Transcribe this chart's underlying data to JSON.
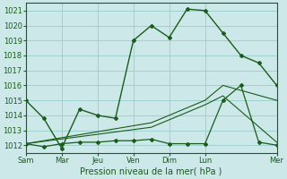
{
  "xlabel": "Pression niveau de la mer( hPa )",
  "bg_color": "#cce8e8",
  "grid_color": "#99cccc",
  "line_color": "#1a5c1a",
  "spine_color": "#1a5c1a",
  "xlim": [
    0,
    14
  ],
  "ylim": [
    1011.5,
    1021.5
  ],
  "yticks": [
    1012,
    1013,
    1014,
    1015,
    1016,
    1017,
    1018,
    1019,
    1020,
    1021
  ],
  "xtick_labels": [
    "Sam",
    "Mar",
    "Jeu",
    "Ven",
    "Dim",
    "Lun",
    "Mer"
  ],
  "xtick_pos": [
    0,
    2,
    4,
    6,
    8,
    10,
    14
  ],
  "line1_x": [
    0,
    1,
    2,
    3,
    4,
    5,
    6,
    7,
    8,
    9,
    10,
    11,
    12,
    13,
    14
  ],
  "line1_y": [
    1015.0,
    1013.8,
    1011.8,
    1014.4,
    1014.0,
    1013.8,
    1019.0,
    1020.0,
    1019.2,
    1021.1,
    1021.0,
    1019.5,
    1018.0,
    1017.5,
    1016.0
  ],
  "line2_x": [
    0,
    1,
    2,
    3,
    4,
    5,
    6,
    7,
    8,
    9,
    10,
    11,
    12,
    13,
    14
  ],
  "line2_y": [
    1012.1,
    1011.9,
    1012.1,
    1012.2,
    1012.2,
    1012.3,
    1012.3,
    1012.4,
    1012.1,
    1012.1,
    1012.1,
    1015.0,
    1016.0,
    1012.2,
    1012.0
  ],
  "line3_x": [
    0,
    7,
    10,
    11,
    14
  ],
  "line3_y": [
    1012.1,
    1013.5,
    1015.0,
    1016.0,
    1015.0
  ],
  "line4_x": [
    0,
    7,
    10,
    11,
    14
  ],
  "line4_y": [
    1012.1,
    1013.2,
    1014.7,
    1015.3,
    1012.2
  ],
  "xlabel_fontsize": 7,
  "tick_fontsize": 6
}
